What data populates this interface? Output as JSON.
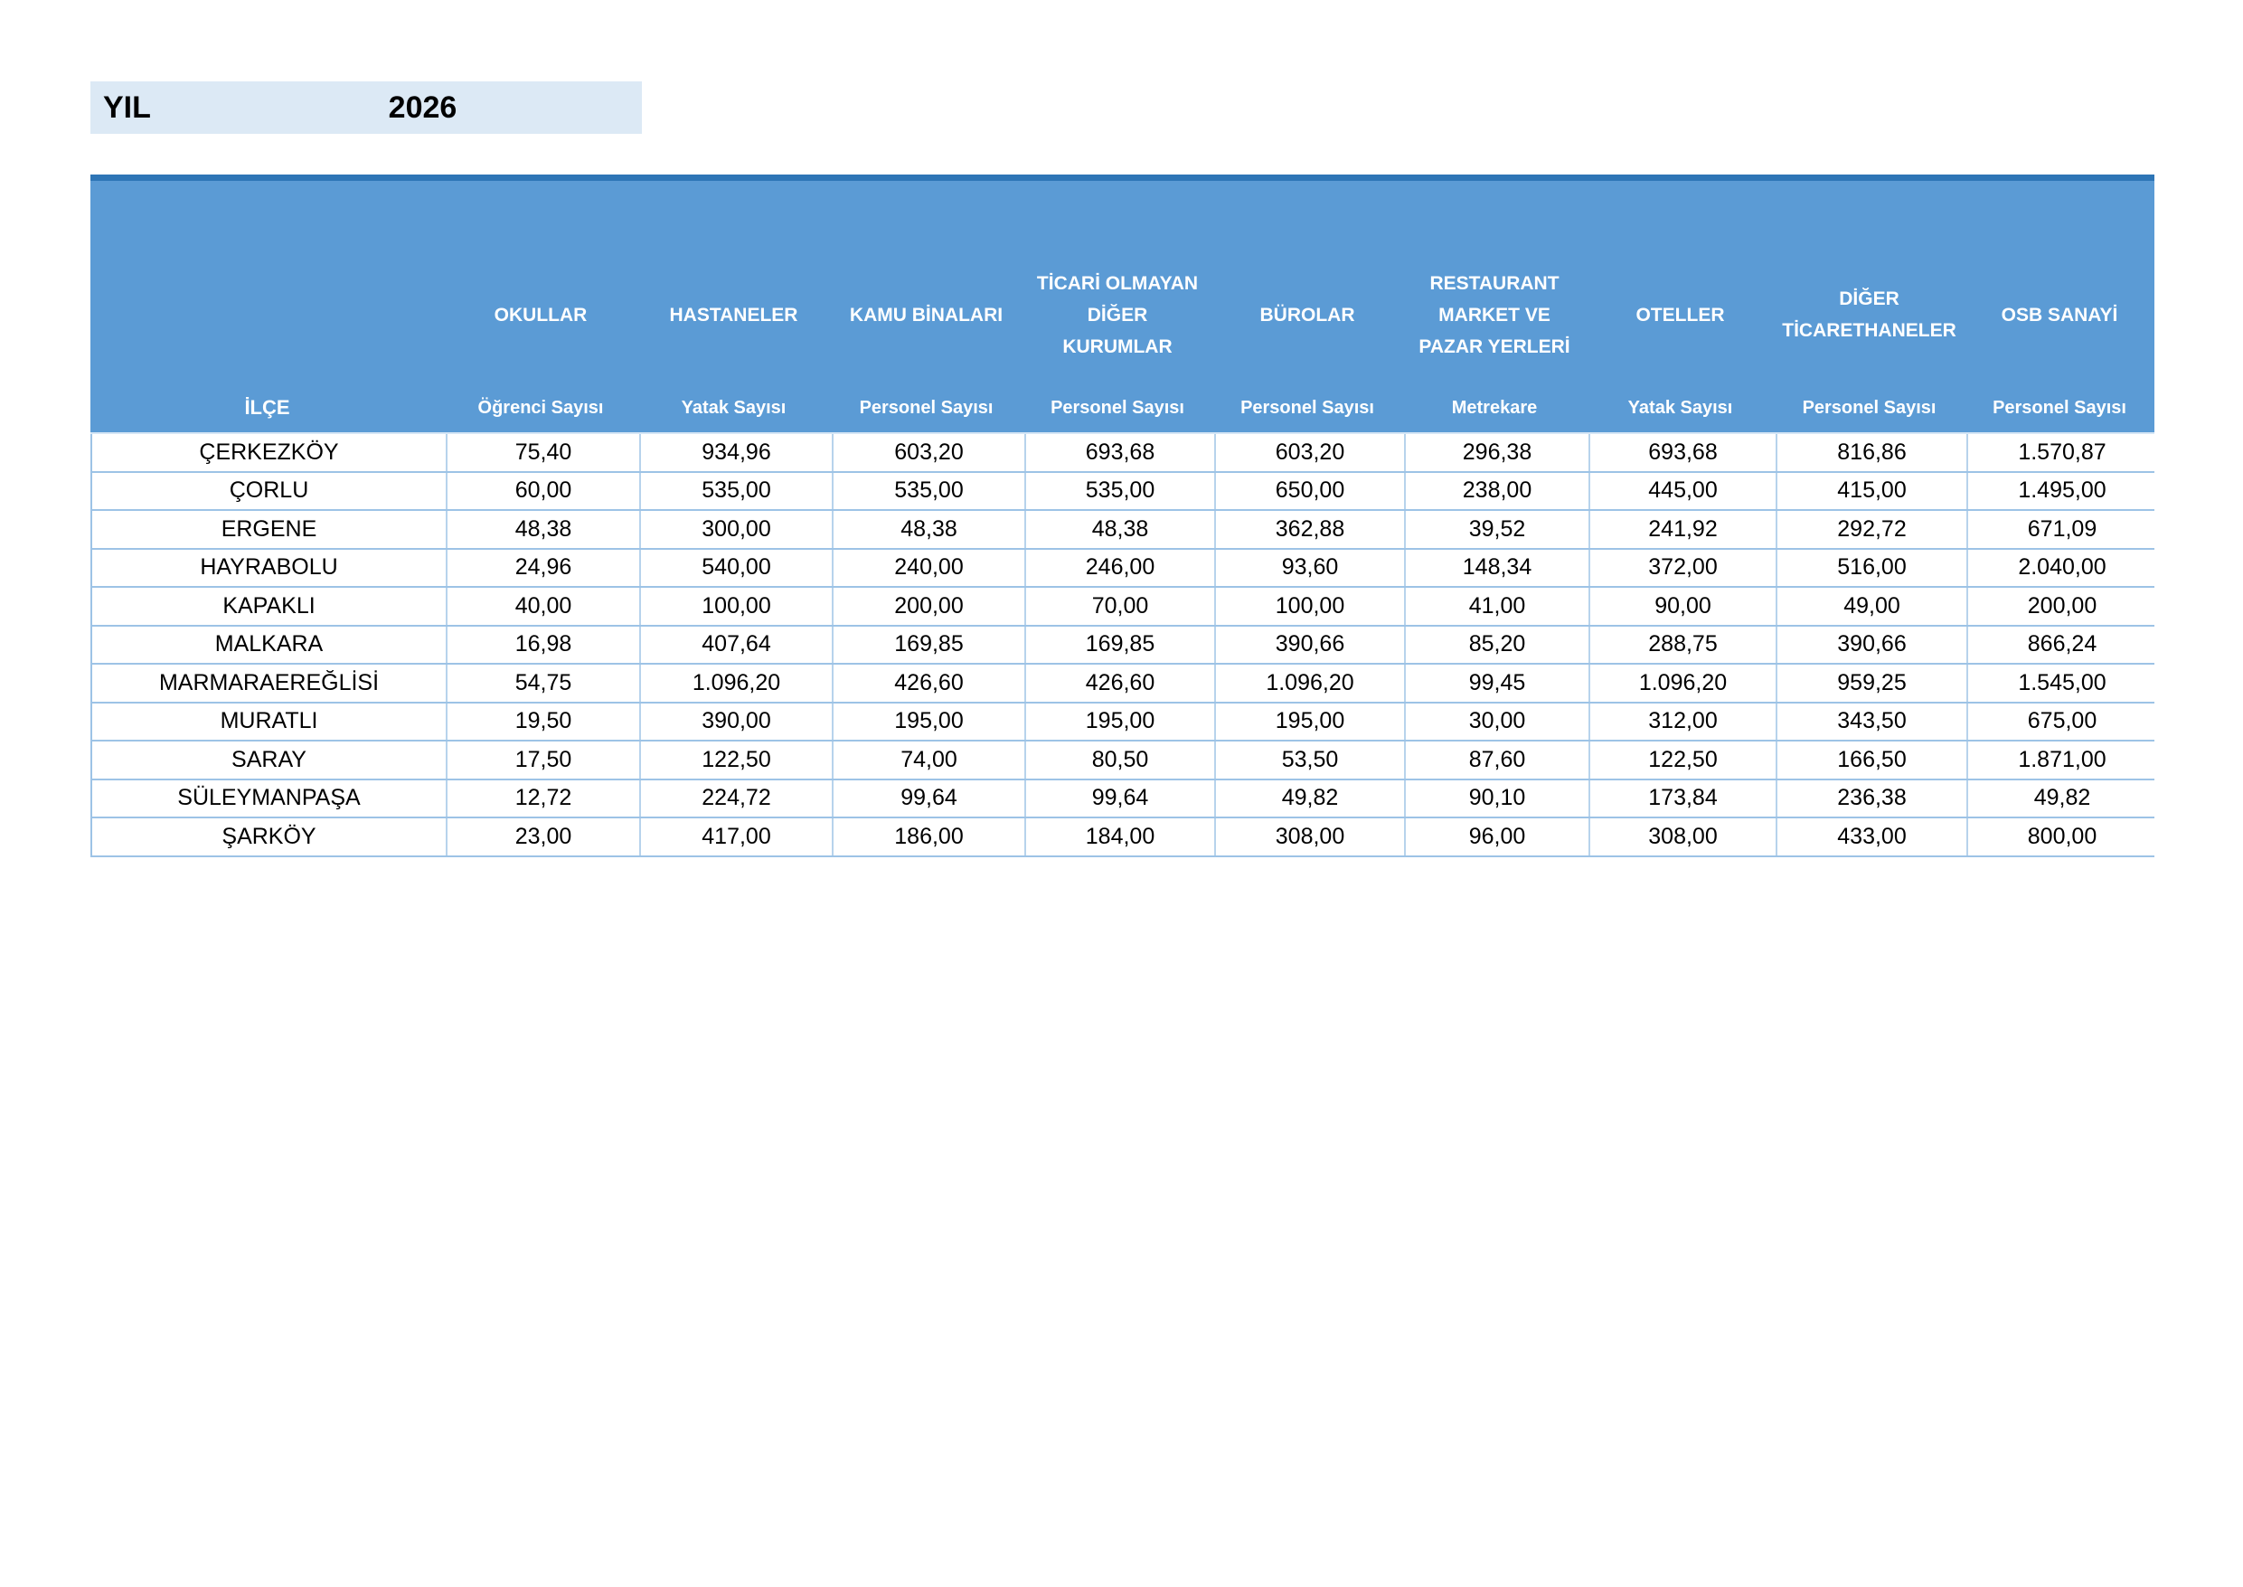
{
  "year": {
    "label": "YIL",
    "value": "2026"
  },
  "colors": {
    "header_blue": "#5b9bd5",
    "header_top_border": "#2e75b6",
    "row_border": "#9dc3e6",
    "year_box_fill": "#dce9f5",
    "header_text": "#ffffff"
  },
  "table": {
    "ilce_header": "İLÇE",
    "groups": [
      {
        "label": "OKULLAR",
        "sub": "Öğrenci Sayısı"
      },
      {
        "label": "HASTANELER",
        "sub": "Yatak Sayısı"
      },
      {
        "label": "KAMU BİNALARI",
        "sub": "Personel Sayısı"
      },
      {
        "label": "TİCARİ OLMAYAN\nDİĞER\nKURUMLAR",
        "sub": "Personel Sayısı"
      },
      {
        "label": "BÜROLAR",
        "sub": "Personel Sayısı"
      },
      {
        "label": "RESTAURANT\nMARKET VE\nPAZAR YERLERİ",
        "sub": "Metrekare"
      },
      {
        "label": "OTELLER",
        "sub": "Yatak Sayısı"
      },
      {
        "label": "DİĞER\nTİCARETHANELER",
        "sub": "Personel Sayısı"
      },
      {
        "label": "OSB SANAYİ",
        "sub": "Personel Sayısı"
      }
    ],
    "rows": [
      {
        "district": "ÇERKEZKÖY",
        "values": [
          "75,40",
          "934,96",
          "603,20",
          "693,68",
          "603,20",
          "296,38",
          "693,68",
          "816,86",
          "1.570,87"
        ]
      },
      {
        "district": "ÇORLU",
        "values": [
          "60,00",
          "535,00",
          "535,00",
          "535,00",
          "650,00",
          "238,00",
          "445,00",
          "415,00",
          "1.495,00"
        ]
      },
      {
        "district": "ERGENE",
        "values": [
          "48,38",
          "300,00",
          "48,38",
          "48,38",
          "362,88",
          "39,52",
          "241,92",
          "292,72",
          "671,09"
        ]
      },
      {
        "district": "HAYRABOLU",
        "values": [
          "24,96",
          "540,00",
          "240,00",
          "246,00",
          "93,60",
          "148,34",
          "372,00",
          "516,00",
          "2.040,00"
        ]
      },
      {
        "district": "KAPAKLI",
        "values": [
          "40,00",
          "100,00",
          "200,00",
          "70,00",
          "100,00",
          "41,00",
          "90,00",
          "49,00",
          "200,00"
        ]
      },
      {
        "district": "MALKARA",
        "values": [
          "16,98",
          "407,64",
          "169,85",
          "169,85",
          "390,66",
          "85,20",
          "288,75",
          "390,66",
          "866,24"
        ]
      },
      {
        "district": "MARMARAEREĞLİSİ",
        "values": [
          "54,75",
          "1.096,20",
          "426,60",
          "426,60",
          "1.096,20",
          "99,45",
          "1.096,20",
          "959,25",
          "1.545,00"
        ]
      },
      {
        "district": "MURATLI",
        "values": [
          "19,50",
          "390,00",
          "195,00",
          "195,00",
          "195,00",
          "30,00",
          "312,00",
          "343,50",
          "675,00"
        ]
      },
      {
        "district": "SARAY",
        "values": [
          "17,50",
          "122,50",
          "74,00",
          "80,50",
          "53,50",
          "87,60",
          "122,50",
          "166,50",
          "1.871,00"
        ]
      },
      {
        "district": "SÜLEYMANPAŞA",
        "values": [
          "12,72",
          "224,72",
          "99,64",
          "99,64",
          "49,82",
          "90,10",
          "173,84",
          "236,38",
          "49,82"
        ]
      },
      {
        "district": "ŞARKÖY",
        "values": [
          "23,00",
          "417,00",
          "186,00",
          "184,00",
          "308,00",
          "96,00",
          "308,00",
          "433,00",
          "800,00"
        ]
      }
    ]
  }
}
